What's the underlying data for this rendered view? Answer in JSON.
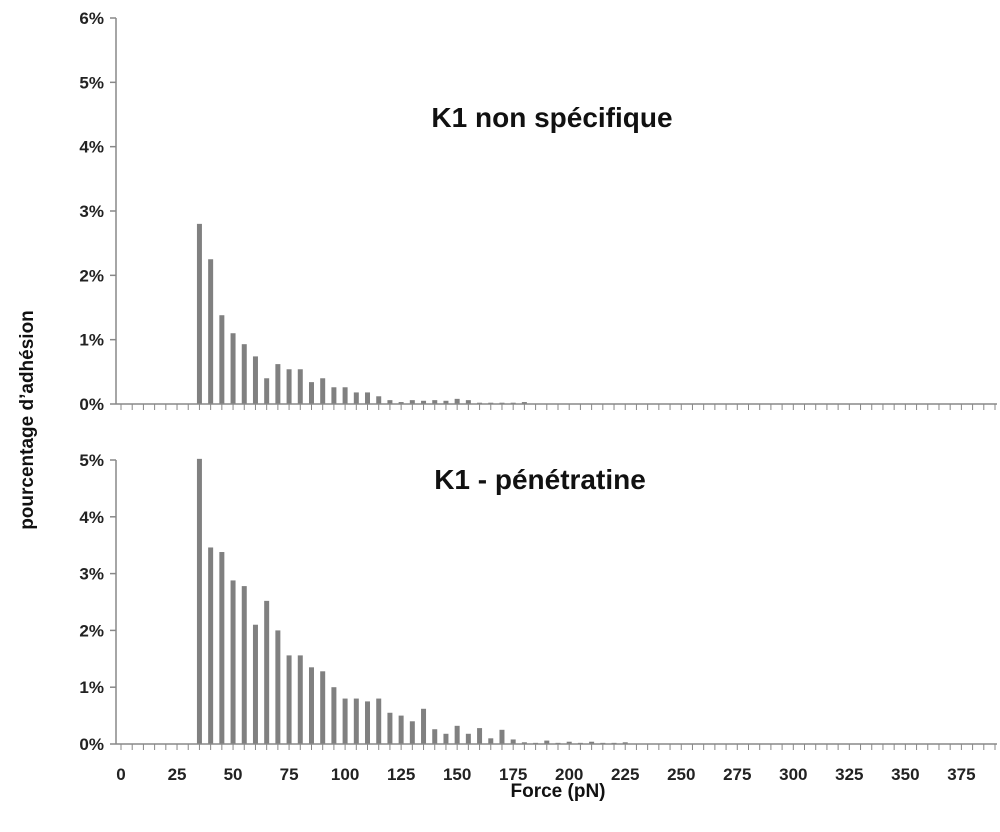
{
  "chart_data": [
    {
      "type": "bar",
      "title": "K1 non spécifique",
      "ylim": [
        0,
        6
      ],
      "y_ticks": [
        "0%",
        "1%",
        "2%",
        "3%",
        "4%",
        "5%",
        "6%"
      ],
      "x": [
        35,
        40,
        45,
        50,
        55,
        60,
        65,
        70,
        75,
        80,
        85,
        90,
        95,
        100,
        105,
        110,
        115,
        120,
        125,
        130,
        135,
        140,
        145,
        150,
        155,
        160,
        165,
        170,
        175,
        180
      ],
      "values": [
        2.8,
        2.25,
        1.38,
        1.1,
        0.93,
        0.74,
        0.4,
        0.62,
        0.54,
        0.54,
        0.34,
        0.4,
        0.26,
        0.26,
        0.18,
        0.18,
        0.12,
        0.06,
        0.03,
        0.06,
        0.05,
        0.06,
        0.05,
        0.08,
        0.06,
        0.02,
        0.02,
        0.02,
        0.02,
        0.03
      ]
    },
    {
      "type": "bar",
      "title": "K1 - pénétratine",
      "ylim": [
        0,
        5
      ],
      "y_ticks": [
        "0%",
        "1%",
        "2%",
        "3%",
        "4%",
        "5%"
      ],
      "x": [
        35,
        40,
        45,
        50,
        55,
        60,
        65,
        70,
        75,
        80,
        85,
        90,
        95,
        100,
        105,
        110,
        115,
        120,
        125,
        130,
        135,
        140,
        145,
        150,
        155,
        160,
        165,
        170,
        175,
        180,
        185,
        190,
        195,
        200,
        205,
        210,
        215,
        220,
        225
      ],
      "values": [
        5.02,
        3.46,
        3.38,
        2.88,
        2.78,
        2.1,
        2.52,
        2.0,
        1.56,
        1.56,
        1.35,
        1.28,
        1.0,
        0.8,
        0.8,
        0.75,
        0.8,
        0.55,
        0.5,
        0.4,
        0.62,
        0.26,
        0.18,
        0.32,
        0.18,
        0.28,
        0.1,
        0.25,
        0.08,
        0.03,
        0.02,
        0.06,
        0.02,
        0.04,
        0.02,
        0.04,
        0.02,
        0.02,
        0.03
      ]
    }
  ],
  "x_axis": {
    "label": "Force (pN)",
    "min": 0,
    "max": 390,
    "tick_labels": [
      "0",
      "25",
      "50",
      "75",
      "100",
      "125",
      "150",
      "175",
      "200",
      "225",
      "250",
      "275",
      "300",
      "325",
      "350",
      "375"
    ]
  },
  "y_axis": {
    "label": "pourcentage d’adhésion"
  },
  "colors": {
    "bars": "#808080",
    "axis": "#888888",
    "text": "#222222"
  }
}
